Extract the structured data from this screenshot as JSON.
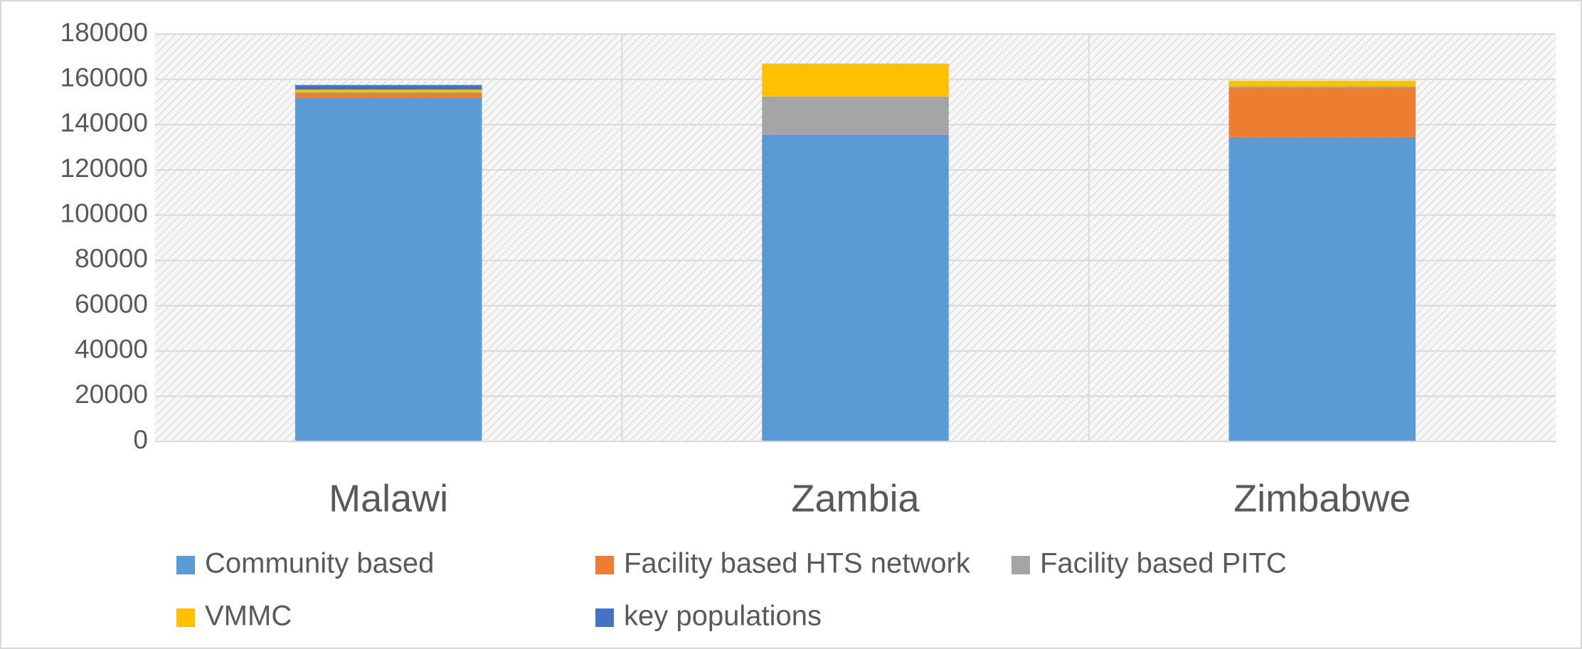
{
  "chart_data": {
    "type": "stacked_bar",
    "categories": [
      "Malawi",
      "Zambia",
      "Zimbabwe"
    ],
    "series": [
      {
        "name": "Community based",
        "color": "#5b9bd5",
        "values": [
          152000,
          135400,
          134500
        ]
      },
      {
        "name": "Facility based HTS network",
        "color": "#ed7d31",
        "values": [
          2000,
          0,
          21900
        ]
      },
      {
        "name": "Facility based PITC",
        "color": "#a5a5a5",
        "values": [
          500,
          17000,
          500
        ]
      },
      {
        "name": "VMMC",
        "color": "#ffc000",
        "values": [
          1000,
          14600,
          2500
        ]
      },
      {
        "name": "key populations",
        "color": "#4472c4",
        "values": [
          2000,
          0,
          0
        ]
      }
    ],
    "ylim": [
      0,
      180000
    ],
    "yticks": [
      0,
      20000,
      40000,
      60000,
      80000,
      100000,
      120000,
      140000,
      160000,
      180000
    ],
    "grid": true
  }
}
